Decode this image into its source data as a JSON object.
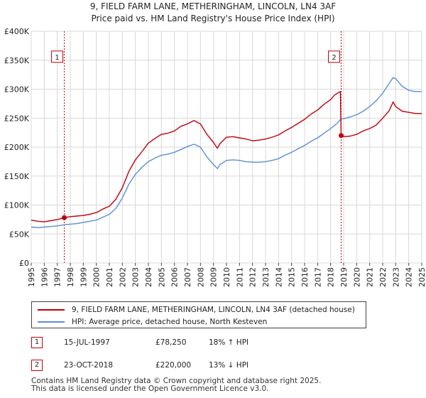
{
  "colors": {
    "property": "#c0000b",
    "hpi": "#5b8ed6",
    "grid": "#d8d8d8",
    "marker_box": "#c0000b"
  },
  "chart_data": {
    "type": "line",
    "title": "9, FIELD FARM LANE, METHERINGHAM, LINCOLN, LN4 3AF",
    "subtitle": "Price paid vs. HM Land Registry's House Price Index (HPI)",
    "xlabel": "",
    "ylabel": "",
    "xlim": [
      1995.0,
      2025.0
    ],
    "ylim": [
      0,
      400000
    ],
    "grid": true,
    "legend_position": "below",
    "x_ticks": [
      "1995",
      "1996",
      "1997",
      "1998",
      "1999",
      "2000",
      "2001",
      "2002",
      "2003",
      "2004",
      "2005",
      "2006",
      "2007",
      "2008",
      "2009",
      "2010",
      "2011",
      "2012",
      "2013",
      "2014",
      "2015",
      "2016",
      "2017",
      "2018",
      "2019",
      "2020",
      "2021",
      "2022",
      "2023",
      "2024",
      "2025"
    ],
    "y_ticks": [
      {
        "value": 0,
        "label": "£0"
      },
      {
        "value": 50000,
        "label": "£50K"
      },
      {
        "value": 100000,
        "label": "£100K"
      },
      {
        "value": 150000,
        "label": "£150K"
      },
      {
        "value": 200000,
        "label": "£200K"
      },
      {
        "value": 250000,
        "label": "£250K"
      },
      {
        "value": 300000,
        "label": "£300K"
      },
      {
        "value": 350000,
        "label": "£350K"
      },
      {
        "value": 400000,
        "label": "£400K"
      }
    ],
    "series": [
      {
        "name": "9, FIELD FARM LANE, METHERINGHAM, LINCOLN, LN4 3AF (detached house)",
        "color": "#c0000b",
        "x": [
          1995.0,
          1995.5,
          1996.0,
          1996.5,
          1997.0,
          1997.54,
          1998.0,
          1998.5,
          1999.0,
          1999.5,
          2000.0,
          2000.5,
          2001.0,
          2001.5,
          2002.0,
          2002.5,
          2003.0,
          2003.5,
          2004.0,
          2004.5,
          2005.0,
          2005.5,
          2006.0,
          2006.5,
          2007.0,
          2007.5,
          2008.0,
          2008.5,
          2009.0,
          2009.3,
          2009.5,
          2010.0,
          2010.5,
          2011.0,
          2011.5,
          2012.0,
          2012.5,
          2013.0,
          2013.5,
          2014.0,
          2014.5,
          2015.0,
          2015.5,
          2016.0,
          2016.5,
          2017.0,
          2017.5,
          2018.0,
          2018.3,
          2018.6,
          2018.75,
          2018.81,
          2019.0,
          2019.5,
          2020.0,
          2020.5,
          2021.0,
          2021.5,
          2022.0,
          2022.5,
          2022.8,
          2023.0,
          2023.5,
          2024.0,
          2024.5,
          2025.0
        ],
        "values": [
          74000,
          72000,
          71000,
          73000,
          75000,
          78250,
          80000,
          81000,
          82000,
          84000,
          87000,
          93000,
          98000,
          110000,
          130000,
          158000,
          178000,
          192000,
          207000,
          215000,
          222000,
          224000,
          228000,
          236000,
          240000,
          246000,
          240000,
          222000,
          208000,
          198000,
          206000,
          217000,
          218000,
          216000,
          214000,
          211000,
          212000,
          214000,
          217000,
          221000,
          228000,
          234000,
          241000,
          248000,
          257000,
          264000,
          274000,
          282000,
          290000,
          294000,
          296000,
          220000,
          218000,
          219000,
          222000,
          228000,
          232000,
          238000,
          250000,
          263000,
          278000,
          270000,
          262000,
          260000,
          258000,
          258000
        ]
      },
      {
        "name": "HPI: Average price, detached house, North Kesteven",
        "color": "#5b8ed6",
        "x": [
          1995.0,
          1995.5,
          1996.0,
          1996.5,
          1997.0,
          1997.54,
          1998.0,
          1998.5,
          1999.0,
          1999.5,
          2000.0,
          2000.5,
          2001.0,
          2001.5,
          2002.0,
          2002.5,
          2003.0,
          2003.5,
          2004.0,
          2004.5,
          2005.0,
          2005.5,
          2006.0,
          2006.5,
          2007.0,
          2007.5,
          2008.0,
          2008.5,
          2009.0,
          2009.3,
          2009.5,
          2010.0,
          2010.5,
          2011.0,
          2011.5,
          2012.0,
          2012.5,
          2013.0,
          2013.5,
          2014.0,
          2014.5,
          2015.0,
          2015.5,
          2016.0,
          2016.5,
          2017.0,
          2017.5,
          2018.0,
          2018.5,
          2018.81,
          2019.0,
          2019.5,
          2020.0,
          2020.5,
          2021.0,
          2021.5,
          2022.0,
          2022.5,
          2022.8,
          2023.0,
          2023.5,
          2024.0,
          2024.5,
          2025.0
        ],
        "values": [
          62000,
          61000,
          62000,
          63000,
          64000,
          66000,
          67000,
          68000,
          70000,
          72000,
          74000,
          79000,
          84000,
          94000,
          112000,
          136000,
          153000,
          165000,
          175000,
          181000,
          186000,
          188000,
          191000,
          196000,
          201000,
          205000,
          200000,
          183000,
          170000,
          163000,
          170000,
          177000,
          178000,
          177000,
          175000,
          174000,
          174000,
          175000,
          177000,
          180000,
          186000,
          191000,
          197000,
          203000,
          210000,
          216000,
          224000,
          232000,
          241000,
          249000,
          249000,
          252000,
          256000,
          262000,
          270000,
          280000,
          293000,
          310000,
          320000,
          318000,
          305000,
          298000,
          296000,
          296000
        ]
      }
    ],
    "annotations": [
      {
        "label": "1",
        "x": 1997.54,
        "box_y": 350000
      },
      {
        "label": "2",
        "x": 2018.81,
        "box_y": 350000
      }
    ],
    "sale_points": [
      {
        "x": 1997.54,
        "y": 78250
      },
      {
        "x": 2018.81,
        "y": 220000
      }
    ]
  },
  "transactions": [
    {
      "num": "1",
      "date": "15-JUL-1997",
      "price": "£78,250",
      "hpi_change": "18% ↑ HPI"
    },
    {
      "num": "2",
      "date": "23-OCT-2018",
      "price": "£220,000",
      "hpi_change": "13% ↓ HPI"
    }
  ],
  "footer": {
    "line1": "Contains HM Land Registry data © Crown copyright and database right 2025.",
    "line2": "This data is licensed under the Open Government Licence v3.0."
  }
}
